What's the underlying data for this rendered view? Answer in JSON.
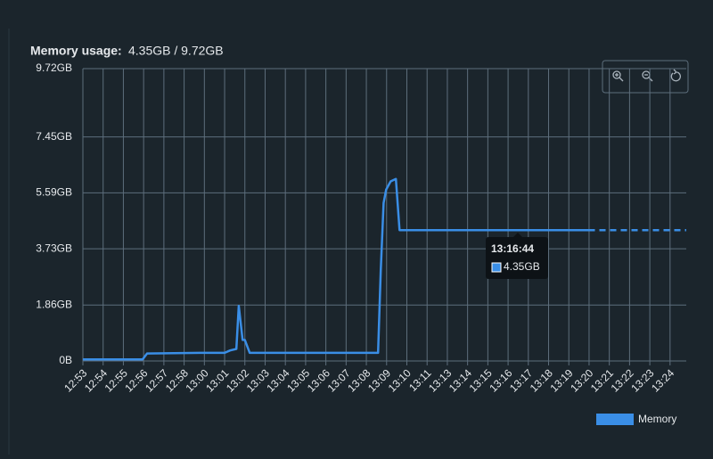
{
  "chart_data": {
    "type": "line",
    "title": "Memory usage:",
    "subtitle": "4.35GB / 9.72GB",
    "xlim": [
      0,
      29.8
    ],
    "xticks": [
      {
        "value": 0,
        "label": "12:53"
      },
      {
        "value": 1,
        "label": "12:54"
      },
      {
        "value": 2,
        "label": "12:55"
      },
      {
        "value": 3,
        "label": "12:56"
      },
      {
        "value": 4,
        "label": "12:57"
      },
      {
        "value": 5,
        "label": "12:58"
      },
      {
        "value": 6,
        "label": "13:00"
      },
      {
        "value": 7,
        "label": "13:01"
      },
      {
        "value": 8,
        "label": "13:02"
      },
      {
        "value": 9,
        "label": "13:03"
      },
      {
        "value": 10,
        "label": "13:04"
      },
      {
        "value": 11,
        "label": "13:05"
      },
      {
        "value": 12,
        "label": "13:06"
      },
      {
        "value": 13,
        "label": "13:07"
      },
      {
        "value": 14,
        "label": "13:08"
      },
      {
        "value": 15,
        "label": "13:09"
      },
      {
        "value": 16,
        "label": "13:10"
      },
      {
        "value": 17,
        "label": "13:11"
      },
      {
        "value": 18,
        "label": "13:13"
      },
      {
        "value": 19,
        "label": "13:14"
      },
      {
        "value": 20,
        "label": "13:15"
      },
      {
        "value": 21,
        "label": "13:16"
      },
      {
        "value": 22,
        "label": "13:17"
      },
      {
        "value": 23,
        "label": "13:18"
      },
      {
        "value": 24,
        "label": "13:19"
      },
      {
        "value": 25,
        "label": "13:20"
      },
      {
        "value": 26,
        "label": "13:21"
      },
      {
        "value": 27,
        "label": "13:22"
      },
      {
        "value": 28,
        "label": "13:23"
      },
      {
        "value": 29,
        "label": "13:24"
      }
    ],
    "ylim": [
      0,
      9.72
    ],
    "yticks": [
      {
        "value": 0,
        "label": "0B"
      },
      {
        "value": 1.86,
        "label": "1.86GB"
      },
      {
        "value": 3.73,
        "label": "3.73GB"
      },
      {
        "value": 5.59,
        "label": "5.59GB"
      },
      {
        "value": 7.45,
        "label": "7.45GB"
      },
      {
        "value": 9.72,
        "label": "9.72GB"
      }
    ],
    "grid": true,
    "legend": "bottom-right",
    "series": [
      {
        "name": "Memory",
        "color": "#3a8ee6",
        "x": [
          0,
          2.95,
          3.17,
          5.8,
          7.0,
          7.27,
          7.58,
          7.7,
          7.89,
          8.0,
          8.24,
          14.58,
          14.71,
          14.85,
          14.98,
          15.2,
          15.46,
          15.64,
          24.98
        ],
        "values": [
          0.05,
          0.05,
          0.25,
          0.27,
          0.27,
          0.35,
          0.4,
          1.83,
          0.7,
          0.7,
          0.27,
          0.27,
          3.0,
          5.25,
          5.7,
          5.97,
          6.05,
          4.35,
          4.35
        ]
      }
    ],
    "forecast": {
      "x": [
        24.98,
        29.8
      ],
      "values": [
        4.35,
        4.35
      ]
    },
    "tooltip": {
      "title": "13:16:44",
      "label": "4.35GB"
    }
  }
}
